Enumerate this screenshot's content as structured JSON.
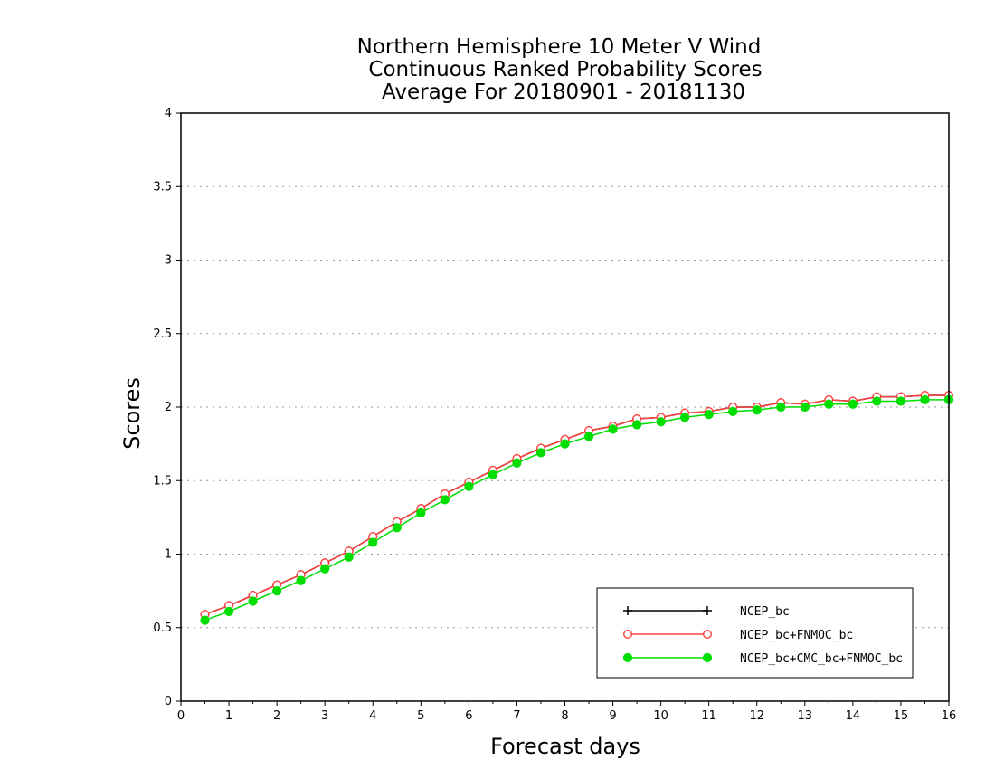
{
  "chart_data": {
    "type": "line",
    "title": [
      "Northern Hemisphere 10 Meter V Wind",
      "Continuous Ranked Probability Scores",
      "Average For 20180901 - 20181130"
    ],
    "xlabel": "Forecast days",
    "ylabel": "Scores",
    "xlim": [
      0,
      16
    ],
    "ylim": [
      0,
      4
    ],
    "xticks": [
      "0",
      "1",
      "2",
      "3",
      "4",
      "5",
      "6",
      "7",
      "8",
      "9",
      "10",
      "11",
      "12",
      "13",
      "14",
      "15",
      "16"
    ],
    "yticks": [
      "0",
      "0.5",
      "1",
      "1.5",
      "2",
      "2.5",
      "3",
      "3.5",
      "4"
    ],
    "grid": "horizontal dotted",
    "legend_position": "bottom-right",
    "x": [
      0.5,
      1,
      1.5,
      2,
      2.5,
      3,
      3.5,
      4,
      4.5,
      5,
      5.5,
      6,
      6.5,
      7,
      7.5,
      8,
      8.5,
      9,
      9.5,
      10,
      10.5,
      11,
      11.5,
      12,
      12.5,
      13,
      13.5,
      14,
      14.5,
      15,
      15.5,
      16
    ],
    "series": [
      {
        "name": "NCEP_bc",
        "color": "#000000",
        "marker": "plus",
        "values": [
          0.59,
          0.65,
          0.72,
          0.79,
          0.86,
          0.94,
          1.02,
          1.12,
          1.22,
          1.31,
          1.41,
          1.49,
          1.57,
          1.65,
          1.72,
          1.78,
          1.84,
          1.87,
          1.92,
          1.93,
          1.96,
          1.97,
          2.0,
          2.0,
          2.03,
          2.02,
          2.05,
          2.04,
          2.07,
          2.07,
          2.08,
          2.08
        ]
      },
      {
        "name": "NCEP_bc+FNMOC_bc",
        "color": "#ff4040",
        "marker": "open-circle",
        "values": [
          0.59,
          0.65,
          0.72,
          0.79,
          0.86,
          0.94,
          1.02,
          1.12,
          1.22,
          1.31,
          1.41,
          1.49,
          1.57,
          1.65,
          1.72,
          1.78,
          1.84,
          1.87,
          1.92,
          1.93,
          1.96,
          1.97,
          2.0,
          2.0,
          2.03,
          2.02,
          2.05,
          2.04,
          2.07,
          2.07,
          2.08,
          2.08
        ]
      },
      {
        "name": "NCEP_bc+CMC_bc+FNMOC_bc",
        "color": "#00dd00",
        "marker": "filled-circle",
        "values": [
          0.55,
          0.61,
          0.68,
          0.75,
          0.82,
          0.9,
          0.98,
          1.08,
          1.18,
          1.28,
          1.37,
          1.46,
          1.54,
          1.62,
          1.69,
          1.75,
          1.8,
          1.85,
          1.88,
          1.9,
          1.93,
          1.95,
          1.97,
          1.98,
          2.0,
          2.0,
          2.02,
          2.02,
          2.04,
          2.04,
          2.05,
          2.05
        ]
      }
    ]
  }
}
